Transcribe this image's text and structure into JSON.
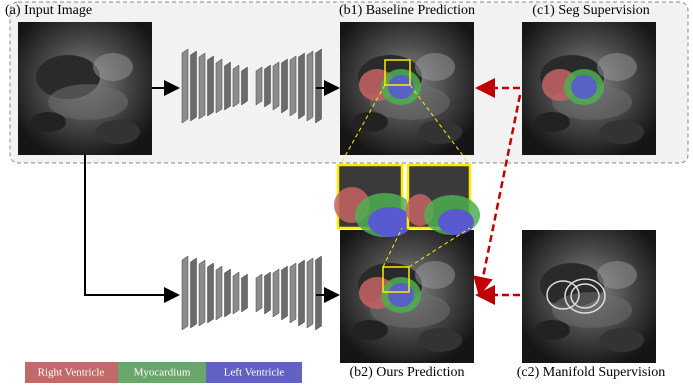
{
  "labels": {
    "input": "(a) Input Image",
    "baseline": "(b1) Baseline Prediction",
    "seg": "(c1) Seg Supervision",
    "ours": "(b2) Ours Prediction",
    "manifold": "(c2) Manifold Supervision"
  },
  "legend": [
    "Right Ventricle",
    "Myocardium",
    "Left Ventricle"
  ]
}
